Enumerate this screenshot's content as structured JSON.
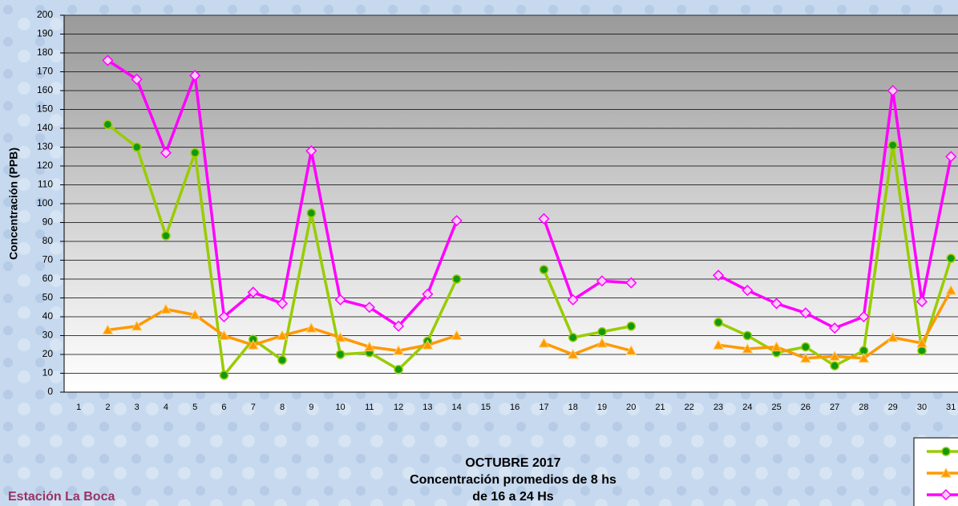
{
  "chart_data": {
    "type": "line",
    "title_lines": [
      "OCTUBRE 2017",
      "Concentración promedios de 8 hs",
      "de 16 a 24 Hs"
    ],
    "station": "Estación La Boca",
    "y_label": "Concentración  (PPB)",
    "categories": [
      "1",
      "2",
      "3",
      "4",
      "5",
      "6",
      "7",
      "8",
      "9",
      "10",
      "11",
      "12",
      "13",
      "14",
      "15",
      "16",
      "17",
      "18",
      "19",
      "20",
      "21",
      "22",
      "23",
      "24",
      "25",
      "26",
      "27",
      "28",
      "29",
      "30",
      "31"
    ],
    "series": [
      {
        "color": "#99cc00",
        "marker": "circle",
        "values": [
          null,
          142,
          130,
          83,
          127,
          9,
          28,
          17,
          95,
          20,
          21,
          12,
          27,
          60,
          null,
          null,
          65,
          29,
          32,
          35,
          null,
          null,
          37,
          30,
          21,
          24,
          14,
          22,
          131,
          22,
          71
        ]
      },
      {
        "color": "#ff9900",
        "marker": "triangle",
        "values": [
          null,
          33,
          35,
          44,
          41,
          30,
          25,
          30,
          34,
          29,
          24,
          22,
          25,
          30,
          null,
          null,
          26,
          20,
          26,
          22,
          null,
          null,
          25,
          23,
          24,
          18,
          19,
          18,
          29,
          26,
          54
        ]
      },
      {
        "color": "#ff00ff",
        "marker": "diamond",
        "values": [
          null,
          176,
          166,
          127,
          168,
          40,
          53,
          47,
          128,
          49,
          45,
          35,
          52,
          91,
          null,
          null,
          92,
          49,
          59,
          58,
          null,
          null,
          62,
          54,
          47,
          42,
          34,
          40,
          160,
          48,
          125
        ]
      }
    ],
    "ylim": [
      0,
      200
    ],
    "yticks": [
      0,
      10,
      20,
      30,
      40,
      50,
      60,
      70,
      80,
      90,
      100,
      110,
      120,
      130,
      140,
      150,
      160,
      170,
      180,
      190,
      200
    ],
    "grid": true
  }
}
